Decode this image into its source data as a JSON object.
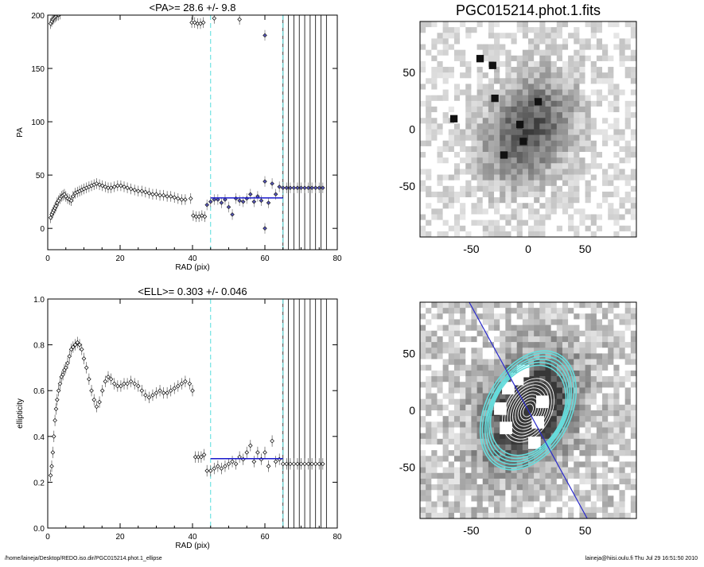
{
  "footer": {
    "left": "/home/laineja/Desktop/REDO.iso.dir/PGC015214.phot.1_ellipse",
    "right": "laineja@hiisi.oulu.fi  Thu Jul 29 16:51:50 2010"
  },
  "chart_data": [
    {
      "type": "scatter",
      "title": "<PA>=  28.6 +/-   9.8",
      "xlabel": "RAD (pix)",
      "ylabel": "PA",
      "xlim": [
        0,
        80
      ],
      "ylim": [
        -20,
        200
      ],
      "xticks": [
        0,
        20,
        40,
        60,
        80
      ],
      "yticks": [
        0,
        50,
        100,
        150,
        200
      ],
      "vlines_dashed_cyan": [
        45,
        65
      ],
      "vlines_black": [
        65,
        66.5,
        68,
        69.5,
        71,
        72.5,
        74,
        75.5,
        77
      ],
      "mean_line": {
        "value": 28.6,
        "x_range": [
          45,
          65
        ],
        "color": "#1a1acc"
      },
      "series": [
        {
          "name": "",
          "color": "#000000",
          "x": [
            0.8,
            1.1,
            1.4,
            1.7,
            2.0,
            2.3,
            2.6,
            3.0,
            3.4,
            3.8,
            4.2,
            4.6,
            5.0,
            5.5,
            6.0,
            6.5,
            7.0,
            7.6,
            8.2,
            8.8,
            9.4,
            10.0,
            10.7,
            11.4,
            12.1,
            12.8,
            13.5,
            14.3,
            15.1,
            15.9,
            16.7,
            17.5,
            18.4,
            19.3,
            20.2,
            21.1,
            22.0,
            23.0,
            24.0,
            25.0,
            26.0,
            27.0,
            28.0,
            29.0,
            30.0,
            31.0,
            32.0,
            33.0,
            34.0,
            35.0,
            36.0,
            37.0,
            38.0,
            39.5,
            40.2,
            41.0,
            41.8,
            42.6,
            43.4
          ],
          "y": [
            10,
            13,
            15,
            17,
            19,
            21,
            24,
            26,
            28,
            30,
            31,
            32,
            30,
            28,
            27,
            26,
            30,
            33,
            34,
            35,
            36,
            37,
            38,
            39,
            40,
            41,
            42,
            41,
            40,
            39,
            38,
            38,
            39,
            40,
            40,
            39,
            38,
            37,
            36,
            35,
            35,
            34,
            33,
            32,
            32,
            31,
            31,
            30,
            30,
            29,
            28,
            27,
            27,
            28,
            12,
            11,
            11,
            12,
            11
          ]
        },
        {
          "name": "",
          "color": "#000000",
          "x": [
            0.8,
            1.1,
            1.4,
            1.7,
            2.0,
            2.3,
            2.6,
            3.0,
            3.4
          ],
          "y": [
            192,
            194,
            196,
            197,
            198,
            199,
            200,
            200,
            201
          ]
        },
        {
          "name": "",
          "color": "#000000",
          "x": [
            39.8,
            40.6,
            41.4,
            42.2,
            43.0,
            46.0,
            53.0
          ],
          "y": [
            193,
            193,
            192,
            192,
            193,
            197,
            196
          ]
        },
        {
          "name": "",
          "color": "#5555bb",
          "x": [
            44,
            45,
            46,
            47,
            48,
            49,
            50,
            51,
            52,
            53,
            54,
            55,
            56,
            57,
            58,
            59,
            60,
            61,
            62,
            63,
            64,
            65,
            66,
            67,
            68,
            69,
            70,
            71,
            72,
            73,
            74,
            75,
            76
          ],
          "y": [
            22,
            25,
            27,
            27,
            24,
            27,
            20,
            13,
            28,
            26,
            25,
            28,
            32,
            25,
            30,
            26,
            44,
            24,
            42,
            32,
            39,
            38,
            38,
            38,
            38,
            38,
            38,
            38,
            38,
            38,
            38,
            38,
            38
          ]
        },
        {
          "name": "",
          "color": "#5555bb",
          "x": [
            60,
            60
          ],
          "y": [
            0,
            181
          ]
        }
      ]
    },
    {
      "type": "image",
      "title": "PGC015214.phot.1.fits",
      "xticks": [
        -50,
        0,
        50
      ],
      "yticks": [
        50,
        0,
        -50
      ],
      "xlim": [
        -95,
        95
      ],
      "ylim": [
        -95,
        95
      ]
    },
    {
      "type": "scatter",
      "title": "<ELL>= 0.303 +/-  0.046",
      "xlabel": "RAD (pix)",
      "ylabel": "ellipticity",
      "xlim": [
        0,
        80
      ],
      "ylim": [
        0.0,
        1.0
      ],
      "xticks": [
        0,
        20,
        40,
        60,
        80
      ],
      "yticks": [
        0.0,
        0.2,
        0.4,
        0.6,
        0.8,
        1.0
      ],
      "ytick_labels": [
        "0.0",
        "0.2",
        "0.4",
        "0.6",
        "0.8",
        "1.0"
      ],
      "vlines_dashed_cyan": [
        45,
        65
      ],
      "vlines_black": [
        65,
        66.5,
        68,
        69.5,
        71,
        72.5,
        74,
        75.5,
        77
      ],
      "mean_line": {
        "value": 0.303,
        "x_range": [
          45,
          65
        ],
        "color": "#1a1acc"
      },
      "series": [
        {
          "name": "",
          "color": "#000000",
          "x": [
            0.8,
            1.1,
            1.4,
            1.7,
            2.0,
            2.3,
            2.6,
            3.0,
            3.4,
            3.8,
            4.2,
            4.6,
            5.0,
            5.5,
            6.0,
            6.5,
            7.0,
            7.6,
            8.2,
            8.8,
            9.4,
            10.0,
            10.7,
            11.4,
            12.1,
            12.8,
            13.5,
            14.3,
            15.1,
            15.9,
            16.7,
            17.5,
            18.4,
            19.3,
            20.2,
            21.1,
            22.0,
            23.0,
            24.0,
            25.0,
            26.0,
            27.0,
            28.0,
            29.0,
            30.0,
            31.0,
            32.0,
            33.0,
            34.0,
            35.0,
            36.0,
            37.0,
            38.0,
            39.2,
            40.0,
            40.8,
            41.6,
            42.4,
            43.2
          ],
          "y": [
            0.23,
            0.27,
            0.33,
            0.4,
            0.47,
            0.52,
            0.56,
            0.6,
            0.63,
            0.66,
            0.67,
            0.69,
            0.7,
            0.72,
            0.75,
            0.78,
            0.79,
            0.8,
            0.81,
            0.8,
            0.78,
            0.74,
            0.7,
            0.65,
            0.6,
            0.56,
            0.53,
            0.55,
            0.6,
            0.64,
            0.66,
            0.65,
            0.63,
            0.62,
            0.62,
            0.63,
            0.63,
            0.64,
            0.63,
            0.62,
            0.6,
            0.58,
            0.57,
            0.58,
            0.59,
            0.6,
            0.59,
            0.59,
            0.6,
            0.61,
            0.62,
            0.63,
            0.64,
            0.63,
            0.6,
            0.31,
            0.31,
            0.31,
            0.32
          ]
        },
        {
          "name": "",
          "color": "#000000",
          "x": [
            44,
            45,
            46,
            47,
            48,
            49,
            50,
            51,
            52,
            53,
            54,
            55,
            56,
            57,
            58,
            59,
            60,
            61,
            62,
            63,
            64,
            65,
            66,
            67,
            68,
            69,
            70,
            71,
            72,
            73,
            74,
            75,
            76
          ],
          "y": [
            0.25,
            0.25,
            0.26,
            0.27,
            0.26,
            0.27,
            0.28,
            0.29,
            0.28,
            0.31,
            0.3,
            0.33,
            0.36,
            0.29,
            0.33,
            0.3,
            0.33,
            0.27,
            0.38,
            0.29,
            0.3,
            0.28,
            0.28,
            0.28,
            0.28,
            0.28,
            0.28,
            0.28,
            0.28,
            0.28,
            0.28,
            0.28,
            0.28
          ]
        }
      ]
    },
    {
      "type": "image",
      "title": "",
      "xticks": [
        -50,
        0,
        50
      ],
      "yticks": [
        50,
        0,
        -50
      ],
      "xlim": [
        -95,
        95
      ],
      "ylim": [
        -95,
        95
      ],
      "ellipses": {
        "center": [
          0,
          0
        ],
        "angle_deg": 28.6,
        "white_axes": [
          [
            6,
            4
          ],
          [
            9,
            6
          ],
          [
            12,
            8
          ],
          [
            15,
            10
          ],
          [
            18,
            12
          ],
          [
            21,
            14
          ],
          [
            24,
            16
          ],
          [
            27,
            18
          ],
          [
            30,
            20
          ]
        ],
        "cyan_axes": [
          [
            42,
            30
          ],
          [
            45,
            31
          ],
          [
            48,
            32
          ],
          [
            51,
            33
          ],
          [
            54,
            35
          ],
          [
            56,
            37
          ]
        ]
      },
      "pa_line_angle_deg": 28.6
    }
  ]
}
